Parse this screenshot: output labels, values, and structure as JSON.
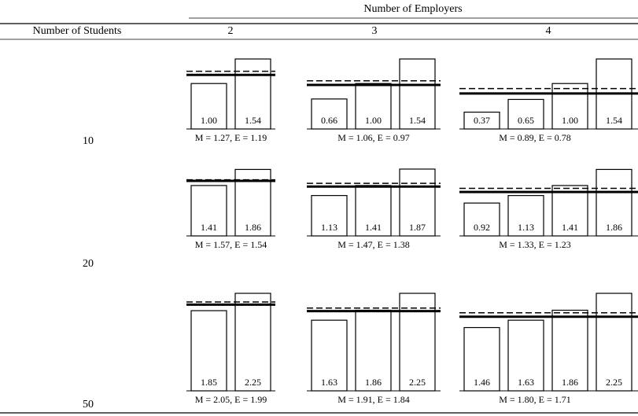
{
  "header": {
    "title": "Number of Employers",
    "row_header": "Number of Students",
    "columns": [
      "2",
      "3",
      "4"
    ]
  },
  "rows": [
    {
      "label": "10",
      "cells": [
        {
          "values": [
            1.0,
            1.54
          ],
          "value_labels": [
            "1.00",
            "1.54"
          ],
          "M": 1.27,
          "E": 1.19,
          "caption": "M = 1.27, E = 1.19"
        },
        {
          "values": [
            0.66,
            1.0,
            1.54
          ],
          "value_labels": [
            "0.66",
            "1.00",
            "1.54"
          ],
          "M": 1.06,
          "E": 0.97,
          "caption": "M = 1.06, E = 0.97"
        },
        {
          "values": [
            0.37,
            0.65,
            1.0,
            1.54
          ],
          "value_labels": [
            "0.37",
            "0.65",
            "1.00",
            "1.54"
          ],
          "M": 0.89,
          "E": 0.78,
          "caption": "M = 0.89, E = 0.78"
        }
      ]
    },
    {
      "label": "20",
      "cells": [
        {
          "values": [
            1.41,
            1.86
          ],
          "value_labels": [
            "1.41",
            "1.86"
          ],
          "M": 1.57,
          "E": 1.54,
          "caption": "M = 1.57, E = 1.54"
        },
        {
          "values": [
            1.13,
            1.41,
            1.87
          ],
          "value_labels": [
            "1.13",
            "1.41",
            "1.87"
          ],
          "M": 1.47,
          "E": 1.38,
          "caption": "M = 1.47, E = 1.38"
        },
        {
          "values": [
            0.92,
            1.13,
            1.41,
            1.86
          ],
          "value_labels": [
            "0.92",
            "1.13",
            "1.41",
            "1.86"
          ],
          "M": 1.33,
          "E": 1.23,
          "caption": "M = 1.33, E = 1.23"
        }
      ]
    },
    {
      "label": "50",
      "cells": [
        {
          "values": [
            1.85,
            2.25
          ],
          "value_labels": [
            "1.85",
            "2.25"
          ],
          "M": 2.05,
          "E": 1.99,
          "caption": "M = 2.05, E = 1.99"
        },
        {
          "values": [
            1.63,
            1.86,
            2.25
          ],
          "value_labels": [
            "1.63",
            "1.86",
            "2.25"
          ],
          "M": 1.91,
          "E": 1.84,
          "caption": "M = 1.91, E = 1.84"
        },
        {
          "values": [
            1.46,
            1.63,
            1.86,
            2.25
          ],
          "value_labels": [
            "1.46",
            "1.63",
            "1.86",
            "2.25"
          ],
          "M": 1.8,
          "E": 1.71,
          "caption": "M = 1.80, E = 1.71"
        }
      ]
    }
  ]
}
